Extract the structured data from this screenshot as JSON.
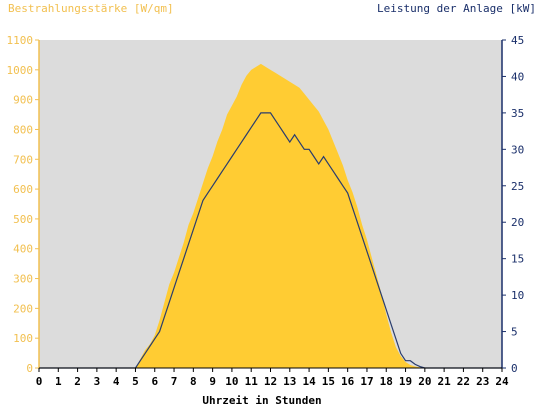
{
  "chart_data": {
    "type": "area",
    "title_left": "Bestrahlungsstärke [W/qm]",
    "title_right": "Leistung der Anlage [kW]",
    "xlabel": "Uhrzeit in Stunden",
    "xlim": [
      0,
      24
    ],
    "ylim_left": [
      0,
      1100
    ],
    "ylim_right": [
      0,
      45
    ],
    "x_ticks": [
      "0",
      "1",
      "2",
      "3",
      "4",
      "5",
      "6",
      "7",
      "8",
      "9",
      "10",
      "11",
      "12",
      "13",
      "14",
      "15",
      "16",
      "17",
      "18",
      "19",
      "20",
      "21",
      "22",
      "23",
      "24"
    ],
    "y_left_ticks": [
      "0",
      "100",
      "200",
      "300",
      "400",
      "500",
      "600",
      "700",
      "800",
      "900",
      "1000",
      "1100"
    ],
    "y_right_ticks": [
      "0",
      "5",
      "10",
      "15",
      "20",
      "25",
      "30",
      "35",
      "40",
      "45"
    ],
    "grid": false,
    "colors": {
      "plot_background": "#dcdcdc",
      "irradiance_fill": "#ffcc33",
      "irradiance_axis": "#f2c050",
      "power_line": "#2a3d6e",
      "power_axis": "#1a2f6a",
      "axis_text": "#000000"
    },
    "series": [
      {
        "axis": "left",
        "style": "area",
        "x": [
          0,
          5,
          5.25,
          5.5,
          5.75,
          6,
          6.25,
          6.5,
          6.75,
          7,
          7.25,
          7.5,
          7.75,
          8,
          8.25,
          8.5,
          8.75,
          9,
          9.25,
          9.5,
          9.75,
          10,
          10.25,
          10.5,
          10.75,
          11,
          11.25,
          11.5,
          11.75,
          12,
          12.25,
          12.5,
          12.75,
          13,
          13.25,
          13.5,
          13.75,
          14,
          14.25,
          14.5,
          14.75,
          15,
          15.25,
          15.5,
          15.75,
          16,
          16.25,
          16.5,
          16.75,
          17,
          17.25,
          17.5,
          17.75,
          18,
          18.25,
          18.5,
          18.75,
          19,
          19.25,
          19.5,
          19.75,
          20,
          20.25,
          24
        ],
        "values": [
          0,
          0,
          30,
          60,
          80,
          110,
          160,
          220,
          280,
          320,
          370,
          420,
          480,
          520,
          570,
          620,
          670,
          710,
          760,
          800,
          850,
          880,
          910,
          950,
          980,
          1000,
          1010,
          1020,
          1010,
          1000,
          990,
          980,
          970,
          960,
          950,
          940,
          920,
          900,
          880,
          860,
          830,
          800,
          760,
          720,
          680,
          630,
          590,
          540,
          480,
          430,
          370,
          310,
          250,
          180,
          120,
          70,
          40,
          20,
          10,
          5,
          2,
          0,
          0,
          0
        ]
      },
      {
        "axis": "right",
        "style": "line",
        "x": [
          0,
          5,
          5.25,
          5.5,
          5.75,
          6,
          6.25,
          6.5,
          6.75,
          7,
          7.25,
          7.5,
          7.75,
          8,
          8.25,
          8.5,
          8.75,
          9,
          9.25,
          9.5,
          9.75,
          10,
          10.25,
          10.5,
          10.75,
          11,
          11.25,
          11.5,
          11.75,
          12,
          12.25,
          12.5,
          12.75,
          13,
          13.25,
          13.5,
          13.75,
          14,
          14.25,
          14.5,
          14.75,
          15,
          15.25,
          15.5,
          15.75,
          16,
          16.25,
          16.5,
          16.75,
          17,
          17.25,
          17.5,
          17.75,
          18,
          18.25,
          18.5,
          18.75,
          19,
          19.25,
          19.5,
          19.75,
          20,
          20.25,
          24
        ],
        "values": [
          0,
          0,
          1,
          2,
          3,
          4,
          5,
          7,
          9,
          11,
          13,
          15,
          17,
          19,
          21,
          23,
          24,
          25,
          26,
          27,
          28,
          29,
          30,
          31,
          32,
          33,
          34,
          35,
          35,
          35,
          34,
          33,
          32,
          31,
          32,
          31,
          30,
          30,
          29,
          28,
          29,
          28,
          27,
          26,
          25,
          24,
          22,
          20,
          18,
          16,
          14,
          12,
          10,
          8,
          6,
          4,
          2,
          1,
          1,
          0.5,
          0.2,
          0,
          0,
          0
        ]
      }
    ]
  }
}
